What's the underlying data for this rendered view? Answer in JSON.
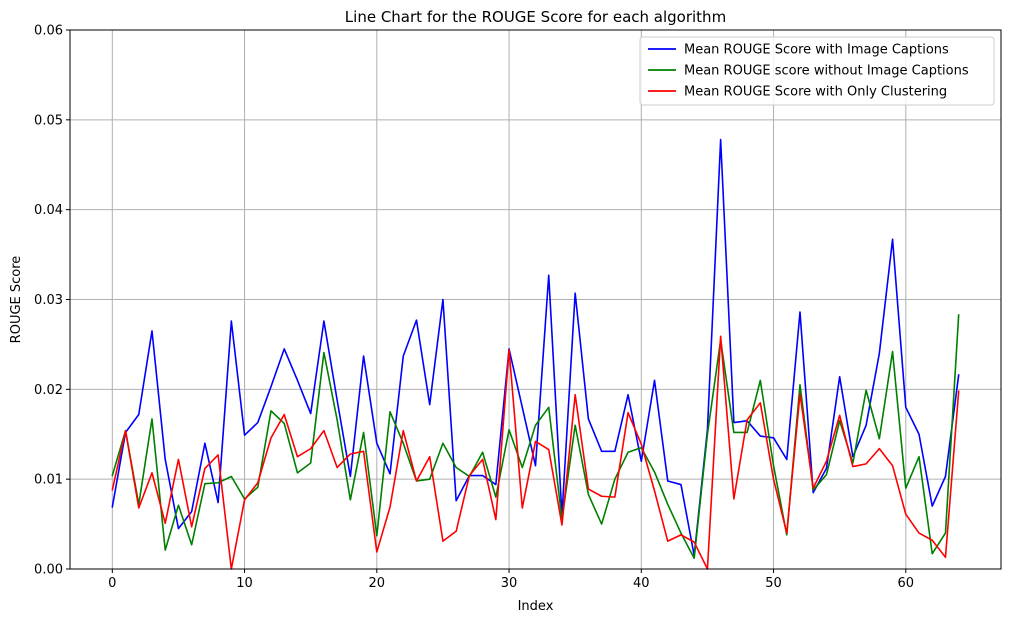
{
  "chart_data": {
    "type": "line",
    "title": "Line Chart for the ROUGE Score for each algorithm",
    "xlabel": "Index",
    "ylabel": "ROUGE Score",
    "xlim": [
      -3.2,
      67.2
    ],
    "ylim": [
      0,
      0.06
    ],
    "x_ticks": [
      0,
      10,
      20,
      30,
      40,
      50,
      60
    ],
    "x_tick_labels": [
      "0",
      "10",
      "20",
      "30",
      "40",
      "50",
      "60"
    ],
    "y_ticks": [
      0,
      0.01,
      0.02,
      0.03,
      0.04,
      0.05,
      0.06
    ],
    "y_tick_labels": [
      "0.00",
      "0.01",
      "0.02",
      "0.03",
      "0.04",
      "0.05",
      "0.06"
    ],
    "grid": true,
    "legend_position": "top-right",
    "x": [
      0,
      1,
      2,
      3,
      4,
      5,
      6,
      7,
      8,
      9,
      10,
      11,
      12,
      13,
      14,
      15,
      16,
      17,
      18,
      19,
      20,
      21,
      22,
      23,
      24,
      25,
      26,
      27,
      28,
      29,
      30,
      31,
      32,
      33,
      34,
      35,
      36,
      37,
      38,
      39,
      40,
      41,
      42,
      43,
      44,
      45,
      46,
      47,
      48,
      49,
      50,
      51,
      52,
      53,
      54,
      55,
      56,
      57,
      58,
      59,
      60,
      61,
      62,
      63,
      64
    ],
    "series": [
      {
        "name": "Mean ROUGE Score with Image Captions",
        "color": "#0000ff",
        "values": [
          0.0069,
          0.0152,
          0.0172,
          0.0265,
          0.0122,
          0.0045,
          0.0064,
          0.014,
          0.0074,
          0.0276,
          0.0149,
          0.0163,
          0.0203,
          0.0245,
          0.021,
          0.0173,
          0.0276,
          0.0188,
          0.0103,
          0.0237,
          0.014,
          0.0106,
          0.0237,
          0.0277,
          0.0183,
          0.03,
          0.0076,
          0.0104,
          0.0104,
          0.0094,
          0.0245,
          0.018,
          0.0115,
          0.0327,
          0.006,
          0.0307,
          0.0167,
          0.0131,
          0.0131,
          0.0194,
          0.012,
          0.021,
          0.0098,
          0.0094,
          0.0015,
          0.0155,
          0.0478,
          0.0163,
          0.0165,
          0.0148,
          0.0146,
          0.0122,
          0.0286,
          0.0085,
          0.0112,
          0.0214,
          0.0125,
          0.016,
          0.024,
          0.0367,
          0.018,
          0.015,
          0.007,
          0.0103,
          0.0216
        ]
      },
      {
        "name": "Mean ROUGE score without Image Captions",
        "color": "#008000",
        "values": [
          0.0104,
          0.0154,
          0.0072,
          0.0167,
          0.0021,
          0.0071,
          0.0027,
          0.0095,
          0.0096,
          0.0103,
          0.0078,
          0.0091,
          0.0176,
          0.0162,
          0.0107,
          0.0118,
          0.0241,
          0.0166,
          0.0077,
          0.0152,
          0.0037,
          0.0175,
          0.014,
          0.0098,
          0.01,
          0.014,
          0.0113,
          0.0103,
          0.013,
          0.008,
          0.0155,
          0.0113,
          0.016,
          0.018,
          0.0055,
          0.016,
          0.0083,
          0.005,
          0.01,
          0.013,
          0.0135,
          0.0108,
          0.0072,
          0.004,
          0.0012,
          0.015,
          0.0255,
          0.0152,
          0.0152,
          0.021,
          0.0115,
          0.0038,
          0.0205,
          0.0088,
          0.0105,
          0.0165,
          0.0118,
          0.0199,
          0.0145,
          0.0242,
          0.009,
          0.0125,
          0.0017,
          0.004,
          0.0283
        ]
      },
      {
        "name": "Mean ROUGE Score with Only Clustering",
        "color": "#ff0000",
        "values": [
          0.0088,
          0.0154,
          0.0068,
          0.0107,
          0.0051,
          0.0122,
          0.0047,
          0.0112,
          0.0127,
          0.0,
          0.0077,
          0.0096,
          0.0146,
          0.0172,
          0.0125,
          0.0134,
          0.0154,
          0.0113,
          0.0128,
          0.0131,
          0.0019,
          0.0069,
          0.0154,
          0.0098,
          0.0125,
          0.0031,
          0.0042,
          0.0104,
          0.0122,
          0.0055,
          0.0244,
          0.0068,
          0.0142,
          0.0133,
          0.0049,
          0.0194,
          0.0089,
          0.0081,
          0.008,
          0.0174,
          0.0139,
          0.0087,
          0.0031,
          0.0038,
          0.003,
          0.0,
          0.0259,
          0.0078,
          0.0166,
          0.0185,
          0.01,
          0.004,
          0.0195,
          0.009,
          0.012,
          0.0171,
          0.0114,
          0.0117,
          0.0134,
          0.0115,
          0.0061,
          0.004,
          0.0032,
          0.0013,
          0.0198
        ]
      }
    ]
  }
}
